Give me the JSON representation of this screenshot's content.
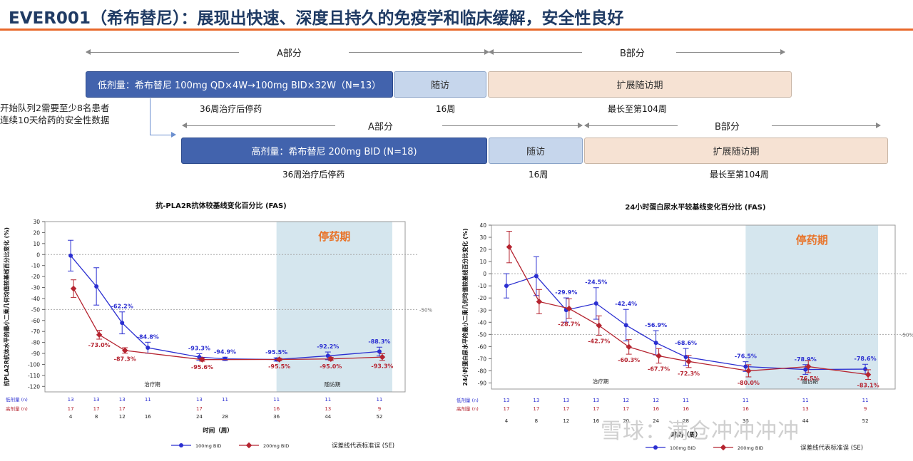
{
  "header": {
    "title": "EVER001（希布替尼）：展现出快速、深度且持久的免疫学和临床缓解，安全性良好"
  },
  "schema": {
    "side_note": "开始队列2需要至少8名患者连续10天给药的安全性数据",
    "low": {
      "part_a": "A部分",
      "part_b": "B部分",
      "dose_label": "低剂量：希布替尼 100mg QD×4W→100mg BID×32W（N=13）",
      "followup_label": "随访",
      "extension_label": "扩展随访期",
      "dose_duration": "36周治疗后停药",
      "followup_duration": "16周",
      "extension_duration": "最长至第104周"
    },
    "high": {
      "part_a": "A部分",
      "part_b": "B部分",
      "dose_label": "高剂量：希布替尼 200mg BID (N=18)",
      "followup_label": "随访",
      "extension_label": "扩展随访期",
      "dose_duration": "36周治疗后停药",
      "followup_duration": "16周",
      "extension_duration": "最长至第104周"
    }
  },
  "watermark": "雪球：满仓冲冲冲冲",
  "colors": {
    "low": "#2b2fd1",
    "high": "#b52430",
    "stop_band": "#d5e6ee",
    "stop_text": "#e8742a",
    "title": "#1f3a63",
    "accent": "#e8682a"
  },
  "chart_data": [
    {
      "type": "line",
      "title": "抗-PLA2R抗体较基线变化百分比 (FAS)",
      "xlabel": "时间（周）",
      "ylabel": "抗PLA2R抗体水平的最小二乘几何均值较基线百分比变化 (%)",
      "ylim": [
        -125,
        30
      ],
      "yticks": [
        30,
        20,
        10,
        0,
        -10,
        -20,
        -30,
        -40,
        -50,
        -60,
        -70,
        -80,
        -90,
        -100,
        -110,
        -120
      ],
      "x": [
        4,
        8,
        12,
        16,
        24,
        28,
        36,
        44,
        52
      ],
      "band": {
        "from": 36,
        "to": 52,
        "label": "停药期"
      },
      "ref_lines": [
        {
          "y": 0,
          "label": ""
        },
        {
          "y": -50,
          "label": "-50%"
        }
      ],
      "region_labels": [
        {
          "text": "治疗期",
          "x": 16
        },
        {
          "text": "随访期",
          "x": 44
        }
      ],
      "series": [
        {
          "name": "100mg BID",
          "color": "#2b2fd1",
          "values": [
            -1,
            -29,
            -62.2,
            -84.8,
            -93.3,
            -94.9,
            -95.5,
            -92.2,
            -88.3
          ],
          "se": [
            14,
            17,
            10,
            5,
            3,
            1.5,
            1.5,
            3.5,
            4
          ],
          "labels": {
            "12": "-62.2%",
            "16": "-84.8%",
            "24": "-93.3%",
            "28": "-94.9%",
            "36": "-95.5%",
            "44": "-92.2%",
            "52": "-88.3%"
          }
        },
        {
          "name": "200mg BID",
          "color": "#b52430",
          "values": [
            -31,
            -73,
            -87.3,
            null,
            -95.6,
            null,
            -95.5,
            -95.0,
            -93.3
          ],
          "se": [
            8,
            4,
            2.5,
            0,
            1.5,
            0,
            1,
            1.5,
            3
          ],
          "labels": {
            "8": "-73.0%",
            "12": "-87.3%",
            "24": "-95.6%",
            "36": "-95.5%",
            "44": "-95.0%",
            "52": "-93.3%"
          }
        }
      ],
      "n_rows": [
        {
          "label": "低剂量 (n)",
          "values": [
            "13",
            "13",
            "13",
            "11",
            "13",
            "11",
            "11",
            "11",
            "11"
          ]
        },
        {
          "label": "高剂量 (n)",
          "values": [
            "17",
            "17",
            "17",
            "",
            "17",
            "",
            "16",
            "13",
            "9"
          ]
        }
      ],
      "legend": {
        "items": [
          "100mg BID",
          "200mg BID"
        ],
        "note": "误差线代表标准误 (SE)"
      }
    },
    {
      "type": "line",
      "title": "24小时蛋白尿水平较基线变化百分比 (FAS)",
      "xlabel": "时间（周）",
      "ylabel": "24小时蛋白尿水平的最小二乘几何均值较基线百分比变化 (%)",
      "ylim": [
        -95,
        40
      ],
      "yticks": [
        40,
        30,
        20,
        10,
        0,
        -10,
        -20,
        -30,
        -40,
        -50,
        -60,
        -70,
        -80,
        -90
      ],
      "x": [
        4,
        8,
        12,
        16,
        20,
        24,
        28,
        36,
        44,
        52
      ],
      "band": {
        "from": 36,
        "to": 52,
        "label": "停药期"
      },
      "ref_lines": [
        {
          "y": 0,
          "label": ""
        },
        {
          "y": -50,
          "label": "-50%"
        }
      ],
      "region_labels": [
        {
          "text": "治疗期",
          "x": 16
        },
        {
          "text": "随访期",
          "x": 44
        }
      ],
      "series": [
        {
          "name": "100mg BID",
          "color": "#2b2fd1",
          "values": [
            -10,
            -2,
            -29.9,
            -24.5,
            -42.4,
            -56.9,
            -68.6,
            -76.5,
            -78.9,
            -78.6
          ],
          "se": [
            10,
            16,
            10,
            13,
            13,
            10,
            7,
            4,
            4,
            4
          ],
          "labels": {
            "12": "-29.9%",
            "16": "-24.5%",
            "20": "-42.4%",
            "24": "-56.9%",
            "28": "-68.6%",
            "36": "-76.5%",
            "44": "-78.9%",
            "52": "-78.6%"
          }
        },
        {
          "name": "200mg BID",
          "color": "#b52430",
          "values": [
            22,
            -23,
            -28.7,
            -42.7,
            -60.3,
            -67.7,
            -72.3,
            -80.0,
            -76.5,
            -83.1
          ],
          "se": [
            13,
            10,
            8,
            8,
            6,
            6,
            5,
            5,
            5,
            4
          ],
          "labels": {
            "12": "-28.7%",
            "16": "-42.7%",
            "20": "-60.3%",
            "24": "-67.7%",
            "28": "-72.3%",
            "36": "-80.0%",
            "44": "-76.5%",
            "52": "-83.1%"
          }
        }
      ],
      "n_rows": [
        {
          "label": "低剂量 (n)",
          "values": [
            "13",
            "13",
            "13",
            "13",
            "12",
            "12",
            "11",
            "11",
            "11",
            "11"
          ]
        },
        {
          "label": "高剂量 (n)",
          "values": [
            "17",
            "17",
            "17",
            "17",
            "17",
            "16",
            "16",
            "16",
            "13",
            "9"
          ]
        }
      ],
      "legend": {
        "items": [
          "100mg BID",
          "200mg BID"
        ],
        "note": "误差线代表标准误 (SE)"
      }
    }
  ]
}
